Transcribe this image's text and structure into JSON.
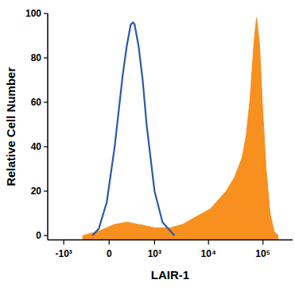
{
  "chart_data": {
    "type": "area",
    "x_label": "LAIR-1",
    "y_label": "Relative Cell Number",
    "xlim": [
      -2000,
      350000
    ],
    "ylim": [
      -2,
      100
    ],
    "xticks": [
      {
        "value": -1000,
        "label": "-10³"
      },
      0,
      {
        "value": 1000,
        "label": "10³"
      },
      {
        "value": 10000,
        "label": "10⁴"
      },
      {
        "value": 100000,
        "label": "10⁵"
      }
    ],
    "yticks": [
      0,
      20,
      40,
      60,
      80,
      100
    ],
    "series": [
      {
        "type": "area",
        "color": "#f7901e",
        "x": [
          -407,
          -136,
          71,
          243,
          480,
          1000,
          1990,
          3330,
          5490,
          10830,
          21180,
          29700,
          41400,
          49200,
          58200,
          69000,
          76200,
          87000,
          96000,
          114000,
          134700,
          159600,
          189000
        ],
        "values": [
          0,
          2,
          5,
          6,
          5,
          3.5,
          3.5,
          5,
          8,
          12,
          20,
          26,
          35,
          45,
          62,
          88,
          98,
          85,
          62,
          30,
          10,
          2,
          0
        ]
      },
      {
        "type": "line",
        "color": "#2b5aa8",
        "x": [
          -230,
          -136,
          -30,
          71,
          181,
          243,
          313,
          357,
          390,
          480,
          583,
          700,
          1000,
          1416,
          2360
        ],
        "values": [
          0,
          3,
          15,
          40,
          72,
          85,
          95,
          96,
          95,
          85,
          70,
          50,
          20,
          6,
          0
        ]
      }
    ]
  }
}
